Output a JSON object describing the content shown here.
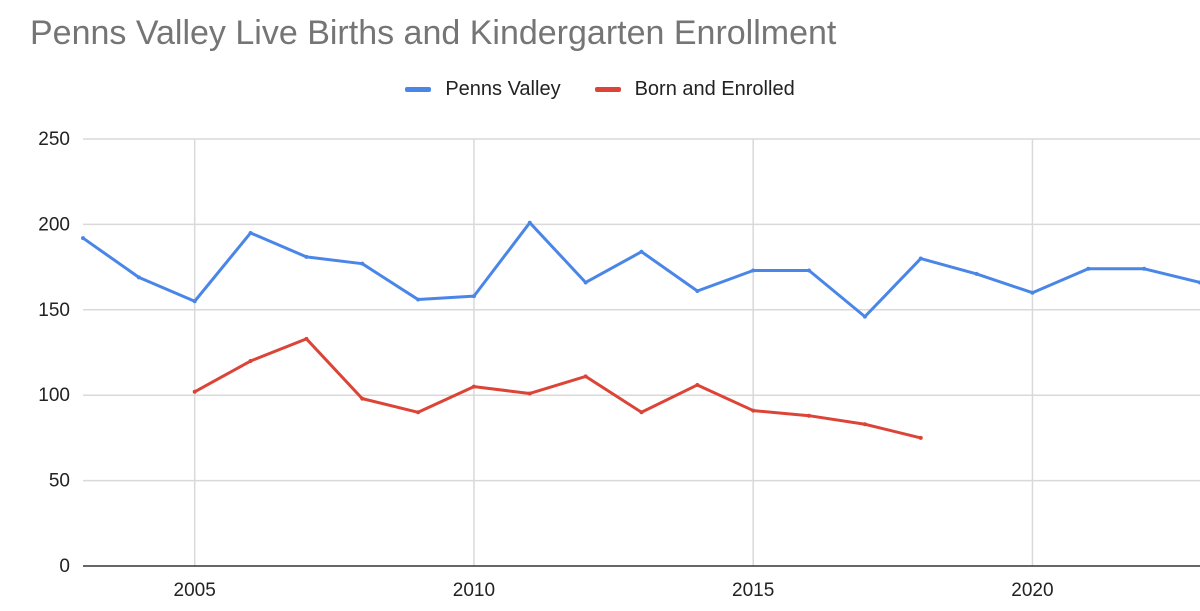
{
  "chart_data": {
    "type": "line",
    "title": "Penns Valley Live Births and Kindergarten Enrollment",
    "xlabel": "",
    "ylabel": "",
    "xlim": [
      2003,
      2023
    ],
    "ylim": [
      0,
      250
    ],
    "x_ticks": [
      "2005",
      "2010",
      "2015",
      "2020"
    ],
    "y_ticks": [
      "0",
      "50",
      "100",
      "150",
      "200",
      "250"
    ],
    "grid": true,
    "legend_position": "top",
    "series": [
      {
        "name": "Penns Valley",
        "color": "#4a86e8",
        "points": [
          {
            "x": 2003,
            "y": 192
          },
          {
            "x": 2004,
            "y": 169
          },
          {
            "x": 2005,
            "y": 155
          },
          {
            "x": 2006,
            "y": 195
          },
          {
            "x": 2007,
            "y": 181
          },
          {
            "x": 2008,
            "y": 177
          },
          {
            "x": 2009,
            "y": 156
          },
          {
            "x": 2010,
            "y": 158
          },
          {
            "x": 2011,
            "y": 201
          },
          {
            "x": 2012,
            "y": 166
          },
          {
            "x": 2013,
            "y": 184
          },
          {
            "x": 2014,
            "y": 161
          },
          {
            "x": 2015,
            "y": 173
          },
          {
            "x": 2016,
            "y": 173
          },
          {
            "x": 2017,
            "y": 146
          },
          {
            "x": 2018,
            "y": 180
          },
          {
            "x": 2019,
            "y": 171
          },
          {
            "x": 2020,
            "y": 160
          },
          {
            "x": 2021,
            "y": 174
          },
          {
            "x": 2022,
            "y": 174
          },
          {
            "x": 2023,
            "y": 166
          }
        ]
      },
      {
        "name": "Born and Enrolled",
        "color": "#db4437",
        "points": [
          {
            "x": 2005,
            "y": 102
          },
          {
            "x": 2006,
            "y": 120
          },
          {
            "x": 2007,
            "y": 133
          },
          {
            "x": 2008,
            "y": 98
          },
          {
            "x": 2009,
            "y": 90
          },
          {
            "x": 2010,
            "y": 105
          },
          {
            "x": 2011,
            "y": 101
          },
          {
            "x": 2012,
            "y": 111
          },
          {
            "x": 2013,
            "y": 90
          },
          {
            "x": 2014,
            "y": 106
          },
          {
            "x": 2015,
            "y": 91
          },
          {
            "x": 2016,
            "y": 88
          },
          {
            "x": 2017,
            "y": 83
          },
          {
            "x": 2018,
            "y": 75
          }
        ]
      }
    ]
  }
}
